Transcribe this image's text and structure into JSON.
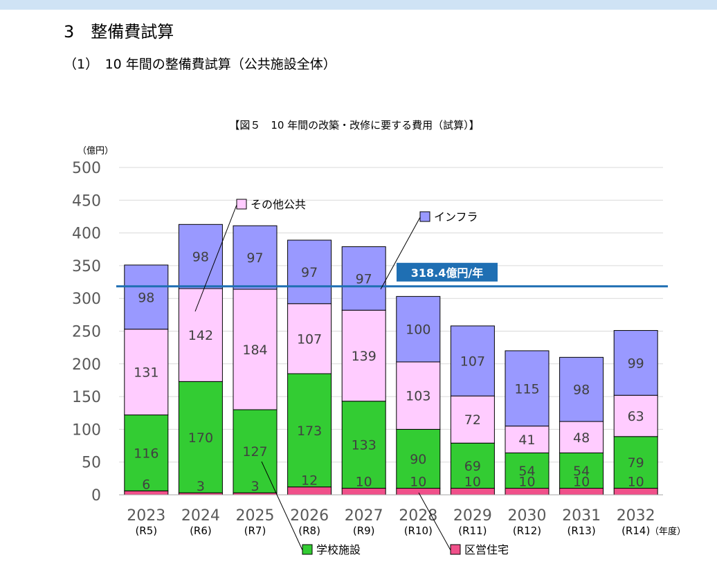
{
  "page": {
    "section_title": "3　整備費試算",
    "sub_title": "（1）　10 年間の整備費試算（公共施設全体）"
  },
  "chart_data": {
    "type": "bar",
    "stacked": true,
    "title": "【図５　10 年間の改築・改修に要する費用（試算）】",
    "ylabel": "（億円）",
    "xlabel": "（年度）",
    "ylim": [
      0,
      500
    ],
    "yticks": [
      0,
      50,
      100,
      150,
      200,
      250,
      300,
      350,
      400,
      450,
      500
    ],
    "grid": true,
    "categories": [
      "2023",
      "2024",
      "2025",
      "2026",
      "2027",
      "2028",
      "2029",
      "2030",
      "2031",
      "2032"
    ],
    "sublabels": [
      "(R5)",
      "(R6)",
      "(R7)",
      "(R8)",
      "(R9)",
      "(R10)",
      "(R11)",
      "(R12)",
      "(R13)",
      "(R14)"
    ],
    "series": [
      {
        "name": "区営住宅",
        "color": "#f0508a",
        "values": [
          6,
          3,
          3,
          12,
          10,
          10,
          10,
          10,
          10,
          10
        ]
      },
      {
        "name": "学校施設",
        "color": "#33cc33",
        "values": [
          116,
          170,
          127,
          173,
          133,
          90,
          69,
          54,
          54,
          79
        ]
      },
      {
        "name": "その他公共",
        "color": "#ffccff",
        "values": [
          131,
          142,
          184,
          107,
          139,
          103,
          72,
          41,
          48,
          63
        ]
      },
      {
        "name": "インフラ",
        "color": "#9999ff",
        "values": [
          98,
          98,
          97,
          97,
          97,
          100,
          107,
          115,
          98,
          99
        ]
      }
    ],
    "reference_line": {
      "value": 318.4,
      "label": "318.4億円/年",
      "color": "#1f6fb3"
    }
  }
}
